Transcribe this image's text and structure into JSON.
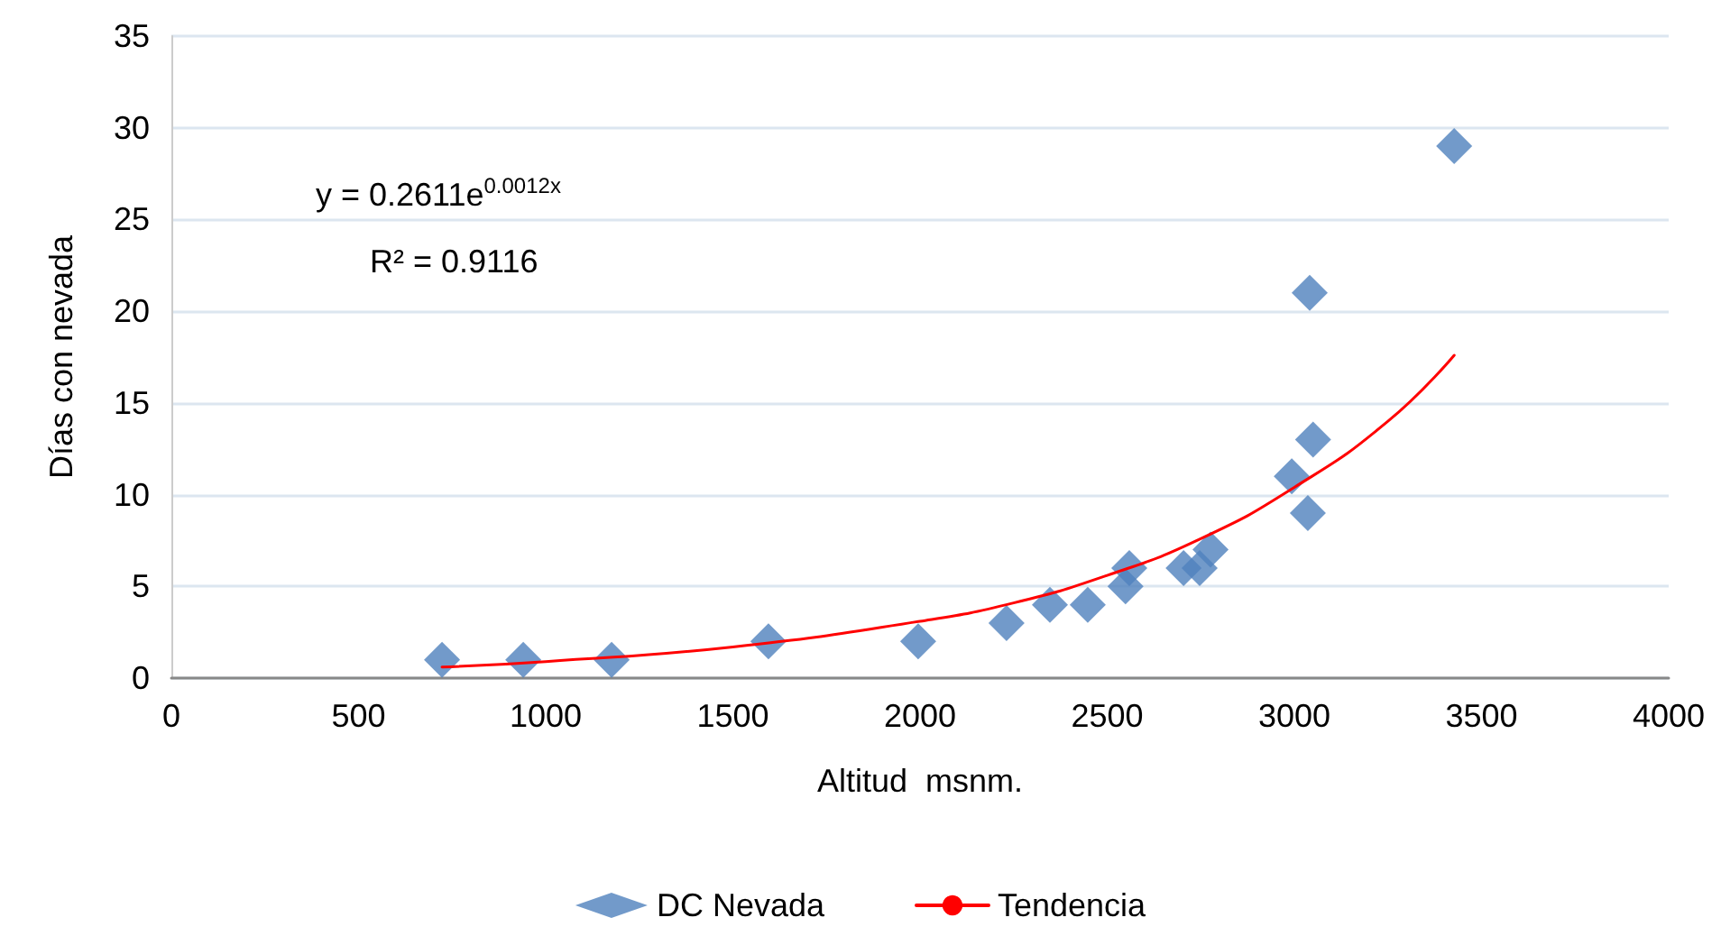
{
  "chart_data": {
    "type": "scatter",
    "xlabel": "Altitud  msnm.",
    "ylabel": "Días con nevada",
    "xlim": [
      0,
      4000
    ],
    "xticks": [
      0,
      500,
      1000,
      1500,
      2000,
      2500,
      3000,
      3500,
      4000
    ],
    "ylim": [
      0,
      35
    ],
    "yticks": [
      0,
      5,
      10,
      15,
      20,
      25,
      30,
      35
    ],
    "grid": "y",
    "legend": "bottom",
    "marker": "diamond",
    "annotations": [
      "y = 0.2611e$^{0.0012x}$",
      "R² = 0.9116"
    ],
    "series": [
      {
        "name": "DC Nevada",
        "type": "scatter",
        "color": "#4f81bd",
        "x": [
          723,
          940,
          1176,
          1595,
          1995,
          2231,
          2347,
          2448,
          2549,
          2559,
          2704,
          2747,
          2776,
          2993,
          3036,
          3041,
          3050,
          3427
        ],
        "values": [
          1,
          1,
          1,
          2,
          2,
          3,
          4,
          4,
          5,
          6,
          6,
          6,
          7,
          11,
          9,
          21,
          13,
          29
        ]
      },
      {
        "name": "Tendencia",
        "type": "line",
        "marker": "none",
        "color": "#ff0000",
        "x": [
          723,
          1000,
          1500,
          2000,
          2250,
          2500,
          2750,
          3000,
          3250,
          3427
        ],
        "values": [
          0.6,
          0.9,
          1.7,
          3.1,
          4.1,
          5.6,
          7.6,
          10.4,
          14.0,
          17.6
        ]
      }
    ]
  }
}
